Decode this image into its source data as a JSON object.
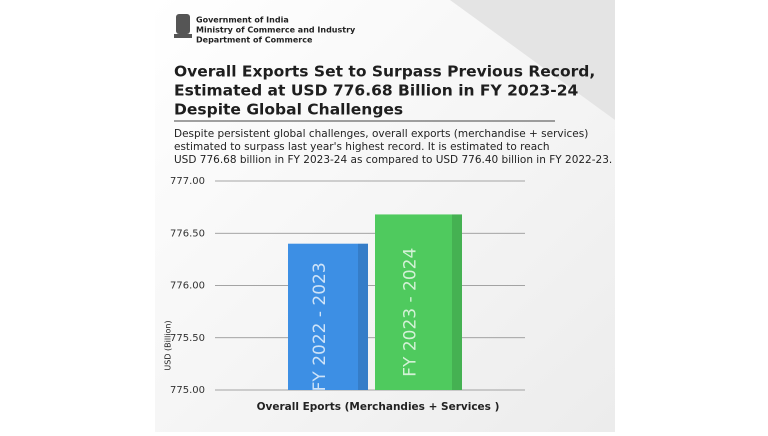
{
  "header": {
    "org_lines": [
      "Government of India",
      "Ministry of Commerce and Industry",
      "Department of Commerce"
    ]
  },
  "headline": {
    "lines": [
      "Overall Exports Set to Surpass Previous Record,",
      "Estimated at USD 776.68 Billion in FY 2023-24",
      "Despite Global Challenges"
    ]
  },
  "description": {
    "lines": [
      "Despite persistent global challenges, overall exports (merchandise + services)",
      "estimated to surpass last year's highest record. It is estimated to reach",
      "USD 776.68 billion in FY 2023-24 as compared to USD 776.40 billion in FY 2022-23."
    ]
  },
  "chart_data": {
    "type": "bar",
    "categories": [
      "FY 2022 - 2023",
      "FY 2023 - 2024"
    ],
    "values": [
      776.4,
      776.68
    ],
    "colors": [
      "#3d8fe4",
      "#4fca5e"
    ],
    "ylim": [
      775,
      777
    ],
    "yticks": [
      {
        "value": 775,
        "label": "775.00"
      },
      {
        "value": 775.5,
        "label": "775.50"
      },
      {
        "value": 776,
        "label": "776.00"
      },
      {
        "value": 776.5,
        "label": "776.50"
      },
      {
        "value": 777,
        "label": "777.00"
      }
    ],
    "y_label": "USD (Billion)",
    "x_label": "Overall Eports (Merchandies + Services )",
    "grid": true
  }
}
